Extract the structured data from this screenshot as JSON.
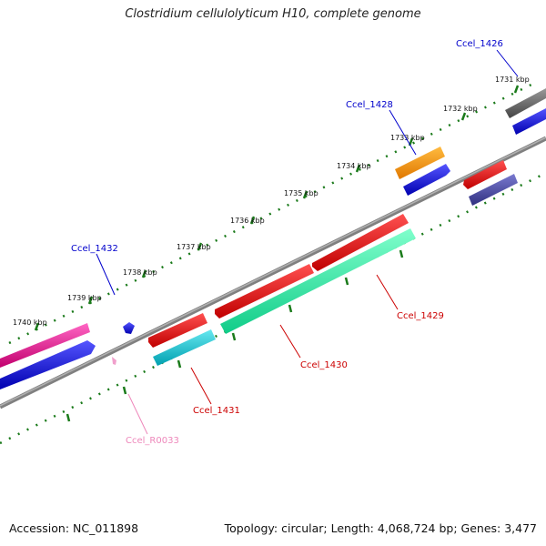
{
  "title": "Clostridium cellulolyticum H10, complete genome",
  "accession": "Accession: NC_011898",
  "summary": "Topology: circular; Length: 4,068,724 bp; Genes: 3,477",
  "ticks": [
    "1731 kbp",
    "1732 kbp",
    "1733 kbp",
    "1734 kbp",
    "1735 kbp",
    "1736 kbp",
    "1737 kbp",
    "1738 kbp",
    "1739 kbp",
    "1740 kbp"
  ],
  "genes": [
    {
      "label": "Ccel_1426",
      "color": "#0000cc"
    },
    {
      "label": "Ccel_1428",
      "color": "#0000cc"
    },
    {
      "label": "Ccel_1429",
      "color": "#cc0000"
    },
    {
      "label": "Ccel_1430",
      "color": "#cc0000"
    },
    {
      "label": "Ccel_1431",
      "color": "#cc0000"
    },
    {
      "label": "Ccel_1432",
      "color": "#0000cc"
    },
    {
      "label": "Ccel_R0033",
      "color": "#ee88bb"
    }
  ]
}
